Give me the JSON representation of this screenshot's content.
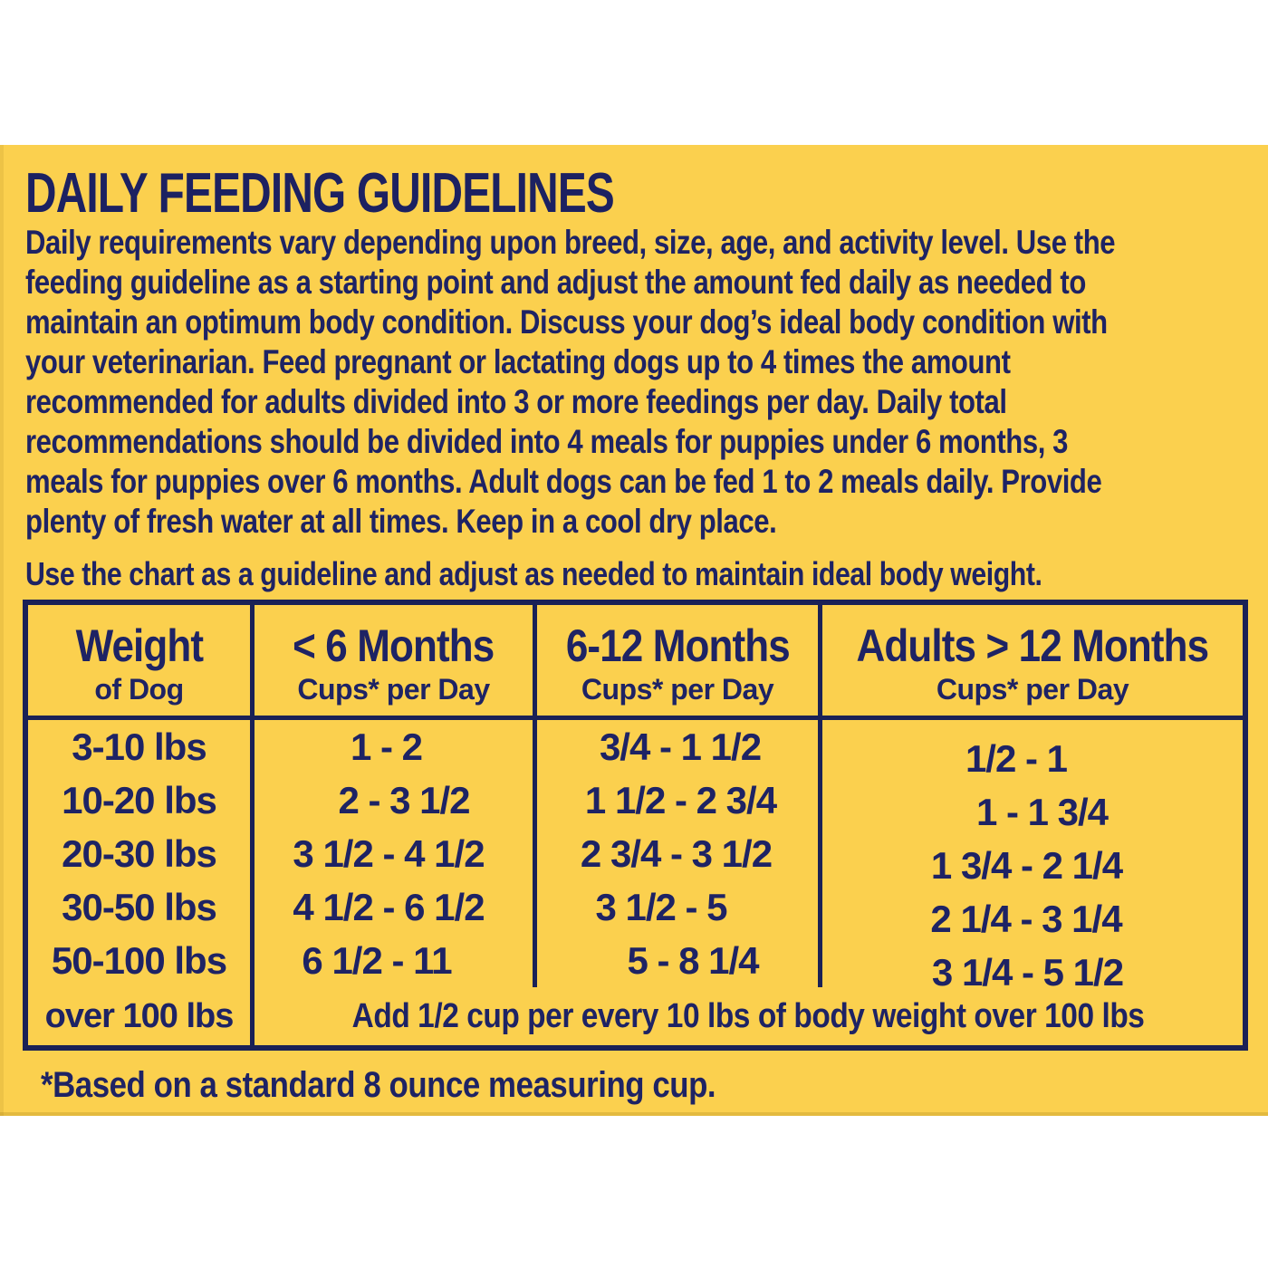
{
  "panel": {
    "title": "DAILY FEEDING GUIDELINES",
    "intro_lines": [
      "Daily requirements vary depending upon breed, size, age, and activity level. Use the",
      "feeding guideline as a starting point and adjust the amount fed daily as needed to",
      "maintain an optimum body condition. Discuss your dog’s ideal body condition with",
      "your veterinarian. Feed pregnant or lactating dogs up to 4 times the amount",
      "recommended for adults divided into 3 or more feedings per day. Daily total",
      "recommendations should be divided into 4 meals for puppies under 6 months, 3",
      "meals for puppies over 6 months. Adult dogs can be fed 1 to 2 meals daily. Provide",
      "plenty of fresh water at all times. Keep in a cool dry place."
    ],
    "chart_note": "Use the chart as a guideline and adjust as needed to maintain ideal body weight.",
    "footnote": "*Based on a standard 8 ounce measuring cup."
  },
  "table": {
    "headers": [
      {
        "title": "Weight",
        "subtitle": "of Dog"
      },
      {
        "title": "< 6 Months",
        "subtitle": "Cups* per Day"
      },
      {
        "title": "6-12 Months",
        "subtitle": "Cups* per Day"
      },
      {
        "title": "Adults > 12 Months",
        "subtitle": "Cups* per Day"
      }
    ],
    "rows": [
      {
        "weight": "3-10 lbs",
        "under_6_months": "1 - 2",
        "months_6_12": "3/4 - 1 1/2",
        "adults": "1/2 - 1"
      },
      {
        "weight": "10-20 lbs",
        "under_6_months": "2 - 3 1/2",
        "months_6_12": "1 1/2 - 2 3/4",
        "adults": "1 - 1 3/4"
      },
      {
        "weight": "20-30 lbs",
        "under_6_months": "3 1/2 - 4 1/2",
        "months_6_12": "2 3/4 - 3 1/2",
        "adults": "1 3/4 - 2 1/4"
      },
      {
        "weight": "30-50 lbs",
        "under_6_months": "4 1/2 - 6 1/2",
        "months_6_12": "3 1/2 - 5",
        "adults": "2 1/4 - 3 1/4"
      },
      {
        "weight": "50-100 lbs",
        "under_6_months": "6 1/2 - 11",
        "months_6_12": "5 - 8 1/4",
        "adults": "3 1/4 - 5 1/2"
      }
    ],
    "over_100": {
      "weight": "over 100 lbs",
      "note": "Add 1/2 cup per every 10 lbs of body weight over 100 lbs"
    }
  },
  "colors": {
    "panel_background": "#fbd04e",
    "text_navy": "#1e2364",
    "border_navy": "#1a2156",
    "page_background": "#ffffff"
  }
}
